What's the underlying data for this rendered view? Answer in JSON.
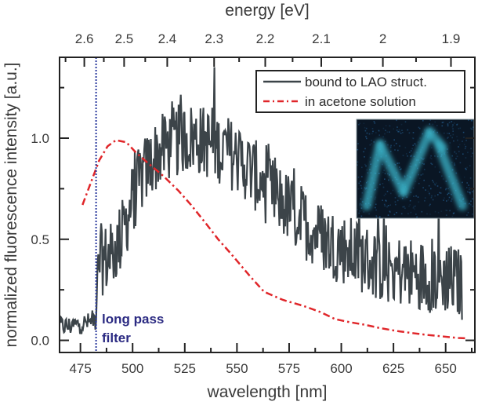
{
  "chart_data": {
    "type": "line",
    "title": "",
    "xlabel": "wavelength [nm]",
    "ylabel": "normalized fluorescence intensity [a.u.]",
    "top_xlabel": "energy [eV]",
    "xlim": [
      465,
      664
    ],
    "ylim": [
      -0.06,
      1.4
    ],
    "x_ticks": [
      475,
      500,
      525,
      550,
      575,
      600,
      625,
      650
    ],
    "x_tick_labels": [
      "475",
      "500",
      "525",
      "550",
      "575",
      "600",
      "625",
      "650"
    ],
    "x_minor_step": 12.5,
    "y_ticks": [
      0.0,
      0.5,
      1.0
    ],
    "y_tick_labels": [
      "0.0",
      "0.5",
      "1.0"
    ],
    "y_minor_step": 0.25,
    "top_ticks_eV": [
      2.6,
      2.5,
      2.4,
      2.3,
      2.2,
      2.1,
      2.0,
      1.9
    ],
    "top_tick_labels": [
      "2.6",
      "2.5",
      "2.4",
      "2.3",
      "2.2",
      "2.1",
      "2",
      "1.9"
    ],
    "top_minor_step_eV": 0.05,
    "energy_conversion_constant": 1239.84,
    "grid": false,
    "legend": {
      "placement": "top-right",
      "entries": [
        {
          "label": "bound to LAO struct.",
          "style": "solid",
          "color": "#3c4449"
        },
        {
          "label": "in acetone solution",
          "style": "dash-dot",
          "color": "#e0262a"
        }
      ]
    },
    "series": [
      {
        "name": "bound to LAO struct.",
        "style": "solid",
        "color": "#3c4449",
        "note": "noisy measured spectrum; smooth envelope listed, noise amplitude approx ±0.2",
        "x": [
          465,
          470,
          475,
          480,
          482.5,
          484,
          487,
          490,
          495,
          500,
          505,
          510,
          515,
          520,
          525,
          530,
          535,
          540,
          545,
          550,
          555,
          560,
          565,
          570,
          575,
          580,
          585,
          590,
          595,
          600,
          605,
          610,
          615,
          620,
          625,
          630,
          635,
          640,
          645,
          650,
          655,
          658
        ],
        "y": [
          0.07,
          0.07,
          0.08,
          0.09,
          0.12,
          0.4,
          0.4,
          0.42,
          0.52,
          0.7,
          0.82,
          0.9,
          0.95,
          0.98,
          1.0,
          1.0,
          0.98,
          0.96,
          0.94,
          0.9,
          0.86,
          0.8,
          0.74,
          0.7,
          0.65,
          0.6,
          0.56,
          0.52,
          0.48,
          0.46,
          0.43,
          0.41,
          0.38,
          0.36,
          0.35,
          0.34,
          0.33,
          0.32,
          0.31,
          0.31,
          0.29,
          0.27
        ]
      },
      {
        "name": "in acetone solution",
        "style": "dash-dot",
        "color": "#e0262a",
        "x": [
          476,
          480,
          484,
          488,
          492,
          497,
          501.5,
          507,
          515,
          522,
          528,
          535,
          541,
          547,
          556,
          563,
          572,
          582,
          590,
          597,
          604,
          611,
          618,
          626,
          634,
          641,
          648,
          656,
          660
        ],
        "y": [
          0.67,
          0.78,
          0.89,
          0.96,
          0.99,
          0.98,
          0.93,
          0.88,
          0.81,
          0.74,
          0.67,
          0.58,
          0.5,
          0.43,
          0.32,
          0.24,
          0.2,
          0.17,
          0.14,
          0.105,
          0.09,
          0.078,
          0.062,
          0.047,
          0.036,
          0.027,
          0.02,
          0.012,
          0.01
        ]
      }
    ],
    "annotations": [
      {
        "type": "vertical-line",
        "x": 482.5,
        "style": "dotted",
        "color": "#2b3a9e"
      },
      {
        "type": "text",
        "lines": [
          "long pass",
          "filter"
        ],
        "x": 484,
        "y": 0.1,
        "color": "#2b2a82",
        "weight": "bold"
      }
    ],
    "inset": {
      "description": "fluorescence micrograph of 'M'-shaped structure",
      "placement": "upper-right",
      "background": "#0a1624",
      "glow_color": "#3bb3c8"
    }
  }
}
